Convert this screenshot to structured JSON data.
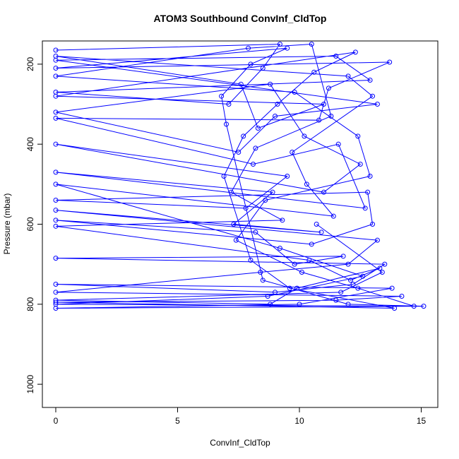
{
  "chart_data": {
    "type": "line",
    "title": "ATOM3 Southbound ConvInf_CldTop",
    "x_label": "ConvInf_CldTop",
    "y_label": "Pressure (mbar)",
    "xlim": [
      -0.55,
      15.68
    ],
    "ylim": [
      1058,
      142
    ],
    "y_reversed": true,
    "xticks": [
      0,
      5,
      10,
      15
    ],
    "yticks": [
      200,
      400,
      600,
      800,
      1000
    ],
    "markers": "open-circle",
    "series": [
      {
        "name": "ConvInf_CldTop",
        "color": "#0000ff",
        "x": [
          0,
          9.2,
          8.5,
          7.1,
          0,
          12.9,
          11.5,
          0,
          13.2,
          9.0,
          7.5,
          0,
          8.8,
          10.2,
          12.5,
          11.0,
          0,
          9.5,
          7.8,
          0,
          12.8,
          13.0,
          10.5,
          0,
          8.2,
          9.8,
          11.8,
          0,
          13.5,
          12.2,
          9.0,
          0,
          13.8,
          10.0,
          0,
          15.1,
          12.0,
          8.5,
          7.0,
          6.8,
          8.0,
          9.5,
          0,
          13.7,
          11.2,
          10.8,
          0,
          8.1,
          11.6,
          12.7,
          0,
          8.9,
          7.3,
          10.9,
          0,
          13.2,
          12.0,
          8.4,
          0,
          14.2,
          11.5,
          0,
          13.9,
          9.6,
          8.0,
          6.9,
          7.7,
          9.1,
          10.6,
          12.3,
          0,
          11.0,
          8.3,
          7.6,
          0,
          12.0,
          13.0,
          9.7,
          10.3,
          11.4,
          0,
          9.2,
          12.6,
          8.7,
          0,
          14.7,
          12.4,
          10.1,
          7.4,
          8.6,
          12.9,
          12.4,
          9.8,
          0,
          7.9,
          10.5,
          11.3,
          8.2,
          7.2,
          9.3,
          0,
          10.4,
          12.1,
          13.3,
          9.9,
          8.8,
          0,
          11.7,
          13.4,
          10.7
        ],
        "values": [
          165,
          150,
          210,
          300,
          270,
          240,
          180,
          190,
          300,
          330,
          420,
          320,
          250,
          380,
          450,
          520,
          400,
          480,
          560,
          540,
          520,
          600,
          650,
          590,
          620,
          700,
          680,
          685,
          700,
          750,
          770,
          750,
          760,
          800,
          810,
          805,
          800,
          740,
          350,
          280,
          200,
          160,
          210,
          195,
          260,
          340,
          335,
          450,
          400,
          560,
          470,
          520,
          600,
          620,
          565,
          640,
          700,
          720,
          770,
          780,
          790,
          795,
          810,
          760,
          690,
          480,
          380,
          300,
          220,
          170,
          280,
          300,
          360,
          250,
          180,
          230,
          280,
          420,
          500,
          580,
          500,
          660,
          730,
          780,
          800,
          805,
          760,
          720,
          640,
          540,
          480,
          380,
          270,
          230,
          160,
          150,
          330,
          410,
          520,
          590,
          605,
          690,
          740,
          710,
          760,
          800,
          790,
          770,
          720,
          600
        ]
      }
    ]
  }
}
